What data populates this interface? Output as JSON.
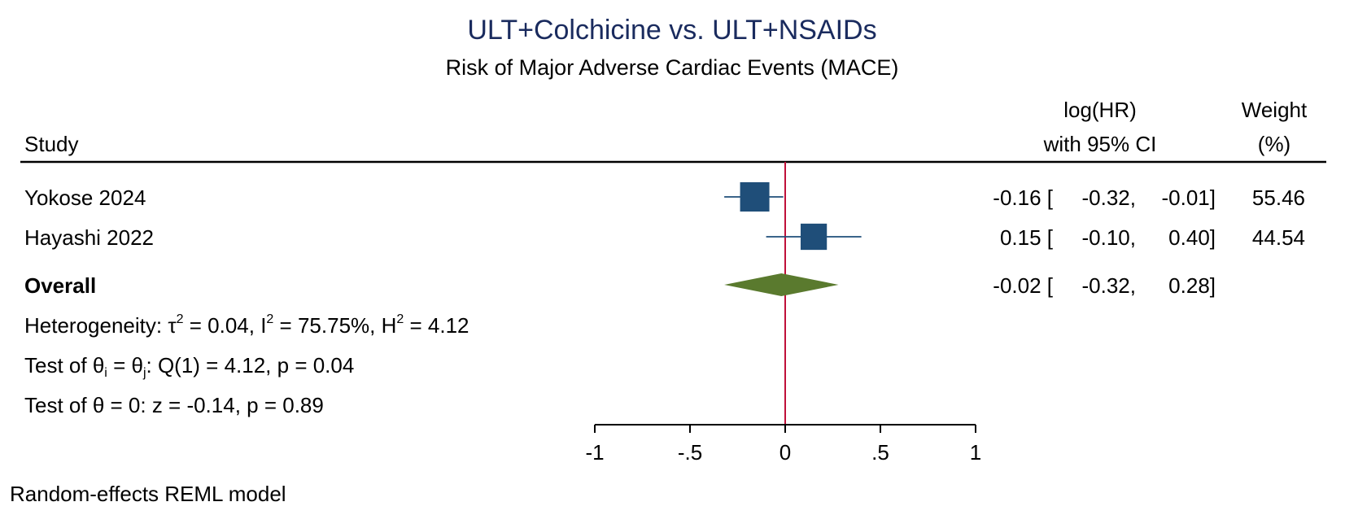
{
  "chart_data": {
    "type": "forest",
    "title": "ULT+Colchicine vs. ULT+NSAIDs",
    "subtitle": "Risk of Major Adverse Cardiac Events (MACE)",
    "columns": {
      "study": "Study",
      "effect_line1": "log(HR)",
      "effect_line2": "with 95% CI",
      "weight_line1": "Weight",
      "weight_line2": "(%)"
    },
    "studies": [
      {
        "name": "Yokose 2024",
        "estimate": -0.16,
        "lower": -0.32,
        "upper": -0.01,
        "est_text": "-0.16 [",
        "lo_text": "-0.32,",
        "hi_text": "-0.01]",
        "weight": "55.46"
      },
      {
        "name": "Hayashi 2022",
        "estimate": 0.15,
        "lower": -0.1,
        "upper": 0.4,
        "est_text": "0.15 [",
        "lo_text": "-0.10,",
        "hi_text": "0.40]",
        "weight": "44.54"
      }
    ],
    "overall": {
      "label": "Overall",
      "estimate": -0.02,
      "lower": -0.32,
      "upper": 0.28,
      "est_text": "-0.02 [",
      "lo_text": "-0.32,",
      "hi_text": "0.28]"
    },
    "heterogeneity": {
      "prefix": "Heterogeneity: τ",
      "sup1": "2",
      "part2": " = 0.04, I",
      "sup2": "2",
      "part3": " = 75.75%, H",
      "sup3": "2",
      "part4": " = 4.12"
    },
    "test_theta_ij": {
      "prefix": "Test of θ",
      "sub1": "i",
      "part2": " = θ",
      "sub2": "j",
      "part3": ": Q(1) = 4.12, p = 0.04"
    },
    "test_theta_0": "Test of θ = 0: z = -0.14, p = 0.89",
    "x_axis": {
      "range": [
        -1,
        1
      ],
      "ticks": [
        -1,
        -0.5,
        0,
        0.5,
        1
      ],
      "tick_labels": [
        "-1",
        "-.5",
        "0",
        ".5",
        "1"
      ]
    },
    "reference_line": 0,
    "footnote": "Random-effects REML model",
    "colors": {
      "title": "#1a2b5e",
      "marker": "#1f4e79",
      "diamond": "#5a7a2e",
      "reference": "#c0103a",
      "axis": "#000000"
    }
  }
}
